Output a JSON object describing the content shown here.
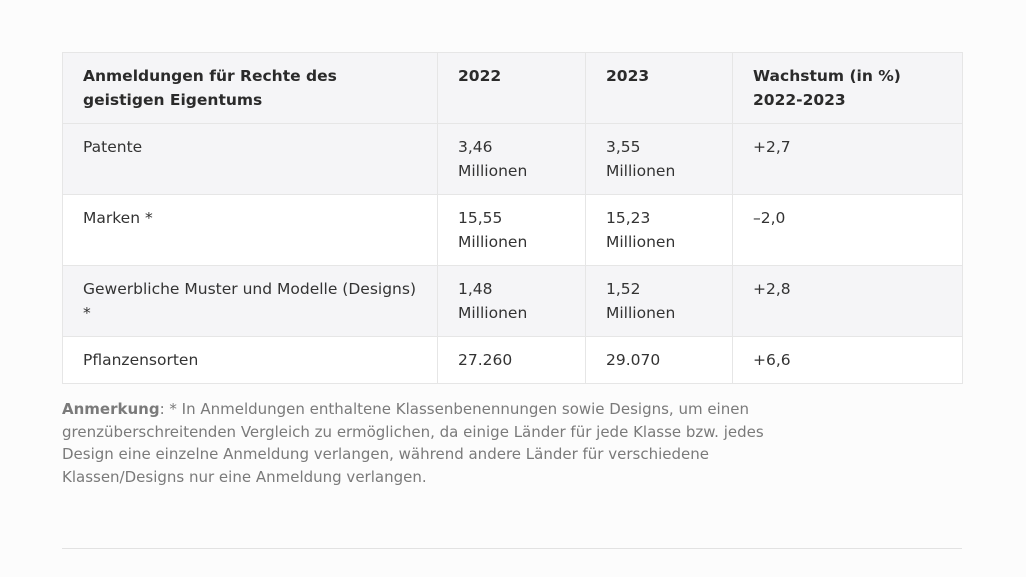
{
  "table": {
    "headers": [
      "Anmeldungen für Rechte des geistigen Eigentums",
      "2022",
      "2023",
      "Wachstum (in %) 2022-2023"
    ],
    "rows": [
      [
        "Patente",
        "3,46 Millionen",
        "3,55 Millionen",
        "+2,7"
      ],
      [
        "Marken *",
        "15,55 Millionen",
        "15,23 Millionen",
        "–2,0"
      ],
      [
        "Gewerbliche Muster und Modelle (Designs) *",
        "1,48 Millionen",
        "1,52 Millionen",
        "+2,8"
      ],
      [
        "Pflanzensorten",
        "27.260",
        "29.070",
        "+6,6"
      ]
    ]
  },
  "note": {
    "label": "Anmerkung",
    "text": ": * In Anmeldungen enthaltene Klassenbenennungen sowie Designs, um einen grenzüberschreitenden Vergleich zu ermöglichen, da einige Länder für jede Klasse bzw. jedes Design eine einzelne Anmeldung verlangen, während andere Länder für verschiedene Klassen/Designs nur eine Anmeldung verlangen."
  }
}
